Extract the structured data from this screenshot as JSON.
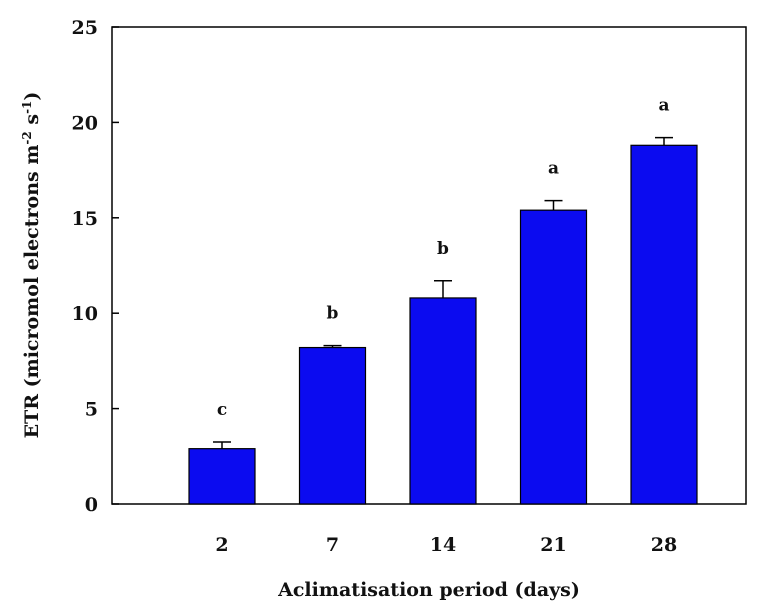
{
  "chart_data": {
    "type": "bar",
    "categories": [
      "2",
      "7",
      "14",
      "21",
      "28"
    ],
    "values": [
      2.9,
      8.2,
      10.8,
      15.4,
      18.8
    ],
    "errors": [
      0.35,
      0.1,
      0.9,
      0.5,
      0.4
    ],
    "significance": [
      "c",
      "b",
      "b",
      "a",
      "a"
    ],
    "xlabel": "Aclimatisation period (days)",
    "ylabel": {
      "prefix": "ETR (micromol electrons m",
      "exp1": "-2",
      "middle": " s",
      "exp2": "-1",
      "suffix": ")"
    },
    "ylim": [
      0,
      25
    ],
    "yticks": [
      0,
      5,
      10,
      15,
      20,
      25
    ],
    "grid": false,
    "bar_color": "#0b0bf0",
    "edge_color": "#000000"
  }
}
